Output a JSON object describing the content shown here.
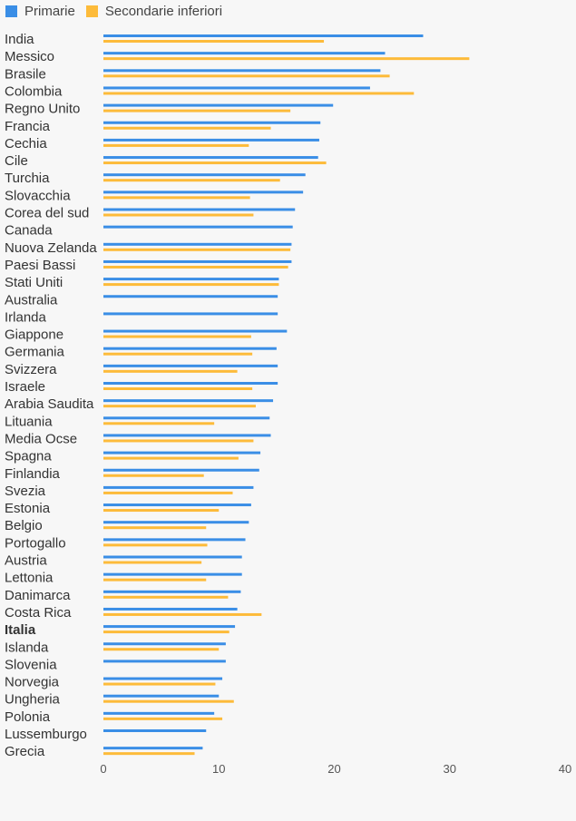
{
  "colors": {
    "primarie": "#3a8ee6",
    "secondarie": "#fdbb3a",
    "label": "#333333",
    "tick": "#555555",
    "background": "#f7f7f7"
  },
  "legend": {
    "primarie": "Primarie",
    "secondarie": "Secondarie inferiori"
  },
  "chart_data": {
    "type": "bar",
    "orientation": "horizontal",
    "title": "",
    "xlabel": "",
    "ylabel": "",
    "xlim": [
      0,
      40
    ],
    "xticks": [
      "0",
      "10",
      "20",
      "30",
      "40"
    ],
    "grid": false,
    "legend_position": "top-left",
    "highlighted_category": "Italia",
    "categories": [
      "India",
      "Messico",
      "Brasile",
      "Colombia",
      "Regno Unito",
      "Francia",
      "Cechia",
      "Cile",
      "Turchia",
      "Slovacchia",
      "Corea del sud",
      "Canada",
      "Nuova Zelanda",
      "Paesi Bassi",
      "Stati Uniti",
      "Australia",
      "Irlanda",
      "Giappone",
      "Germania",
      "Svizzera",
      "Israele",
      "Arabia Saudita",
      "Lituania",
      "Media Ocse",
      "Spagna",
      "Finlandia",
      "Svezia",
      "Estonia",
      "Belgio",
      "Portogallo",
      "Austria",
      "Lettonia",
      "Danimarca",
      "Costa Rica",
      "Italia",
      "Islanda",
      "Slovenia",
      "Norvegia",
      "Ungheria",
      "Polonia",
      "Lussemburgo",
      "Grecia"
    ],
    "series": [
      {
        "name": "Primarie",
        "values": [
          27.7,
          24.4,
          24.0,
          23.1,
          19.9,
          18.8,
          18.7,
          18.6,
          17.5,
          17.3,
          16.6,
          16.4,
          16.3,
          16.3,
          15.2,
          15.1,
          15.1,
          15.9,
          15.0,
          15.1,
          15.1,
          14.7,
          14.4,
          14.5,
          13.6,
          13.5,
          13.0,
          12.8,
          12.6,
          12.3,
          12.0,
          12.0,
          11.9,
          11.6,
          11.4,
          10.6,
          10.6,
          10.3,
          10.0,
          9.6,
          8.9,
          8.6
        ],
        "color": "#3a8ee6"
      },
      {
        "name": "Secondarie inferiori",
        "values": [
          19.1,
          31.7,
          24.8,
          26.9,
          16.2,
          14.5,
          12.6,
          19.3,
          15.3,
          12.7,
          13.0,
          null,
          16.2,
          16.0,
          15.2,
          null,
          null,
          12.8,
          12.9,
          11.6,
          12.9,
          13.2,
          9.6,
          13.0,
          11.7,
          8.7,
          11.2,
          10.0,
          8.9,
          9.0,
          8.5,
          8.9,
          10.8,
          13.7,
          10.9,
          10.0,
          null,
          9.7,
          11.3,
          10.3,
          null,
          7.9
        ]
      }
    ]
  }
}
